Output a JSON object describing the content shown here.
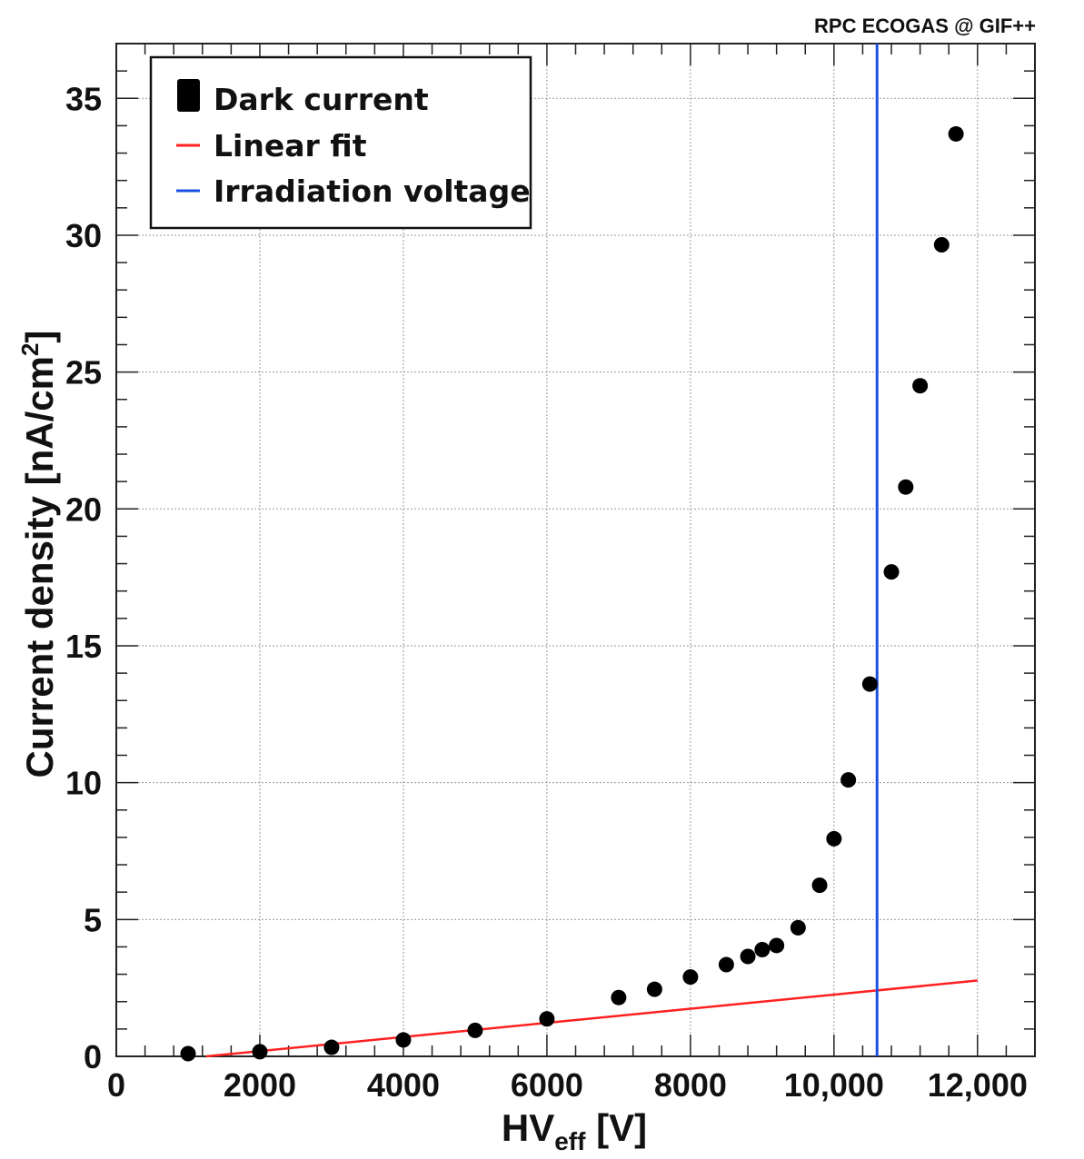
{
  "header": {
    "title": "RPC ECOGAS @ GIF++"
  },
  "chart_data": {
    "type": "scatter",
    "title": "RPC ECOGAS @ GIF++",
    "xlabel": {
      "main": "HV",
      "sub": "eff",
      "unit": " [V]"
    },
    "ylabel": "Current density [nA/cm²]",
    "xlim": [
      0,
      12800
    ],
    "ylim": [
      0,
      37
    ],
    "x_ticks": [
      0,
      2000,
      4000,
      6000,
      8000,
      10000,
      12000
    ],
    "x_tick_labels": [
      "0",
      "2000",
      "4000",
      "6000",
      "8000",
      "10,000",
      "12,000"
    ],
    "y_ticks": [
      0,
      5,
      10,
      15,
      20,
      25,
      30,
      35
    ],
    "y_tick_labels": [
      "0",
      "5",
      "10",
      "15",
      "20",
      "25",
      "30",
      "35"
    ],
    "grid": true,
    "legend": {
      "position": "top-left",
      "entries": [
        {
          "label": "Dark current",
          "style": "marker",
          "color": "#000000"
        },
        {
          "label": "Linear fit",
          "style": "line",
          "color": "#ff2020"
        },
        {
          "label": "Irradiation voltage",
          "style": "line",
          "color": "#1a4fe0"
        }
      ]
    },
    "series": [
      {
        "name": "Dark current",
        "color": "#000000",
        "points": [
          [
            1000,
            0.1
          ],
          [
            2000,
            0.17
          ],
          [
            3000,
            0.33
          ],
          [
            4000,
            0.6
          ],
          [
            5000,
            0.95
          ],
          [
            6000,
            1.37
          ],
          [
            7000,
            2.15
          ],
          [
            7500,
            2.45
          ],
          [
            8000,
            2.9
          ],
          [
            8500,
            3.35
          ],
          [
            8800,
            3.65
          ],
          [
            9000,
            3.9
          ],
          [
            9200,
            4.05
          ],
          [
            9500,
            4.7
          ],
          [
            9800,
            6.25
          ],
          [
            10000,
            7.95
          ],
          [
            10200,
            10.1
          ],
          [
            10500,
            13.6
          ],
          [
            10800,
            17.7
          ],
          [
            11000,
            20.8
          ],
          [
            11200,
            24.5
          ],
          [
            11500,
            29.65
          ],
          [
            11700,
            33.7
          ]
        ]
      },
      {
        "name": "Linear fit",
        "color": "#ff2020",
        "line": [
          [
            1250,
            0.0
          ],
          [
            12000,
            2.77
          ]
        ]
      },
      {
        "name": "Irradiation voltage",
        "color": "#1a4fe0",
        "vline_x": 10600
      }
    ]
  }
}
